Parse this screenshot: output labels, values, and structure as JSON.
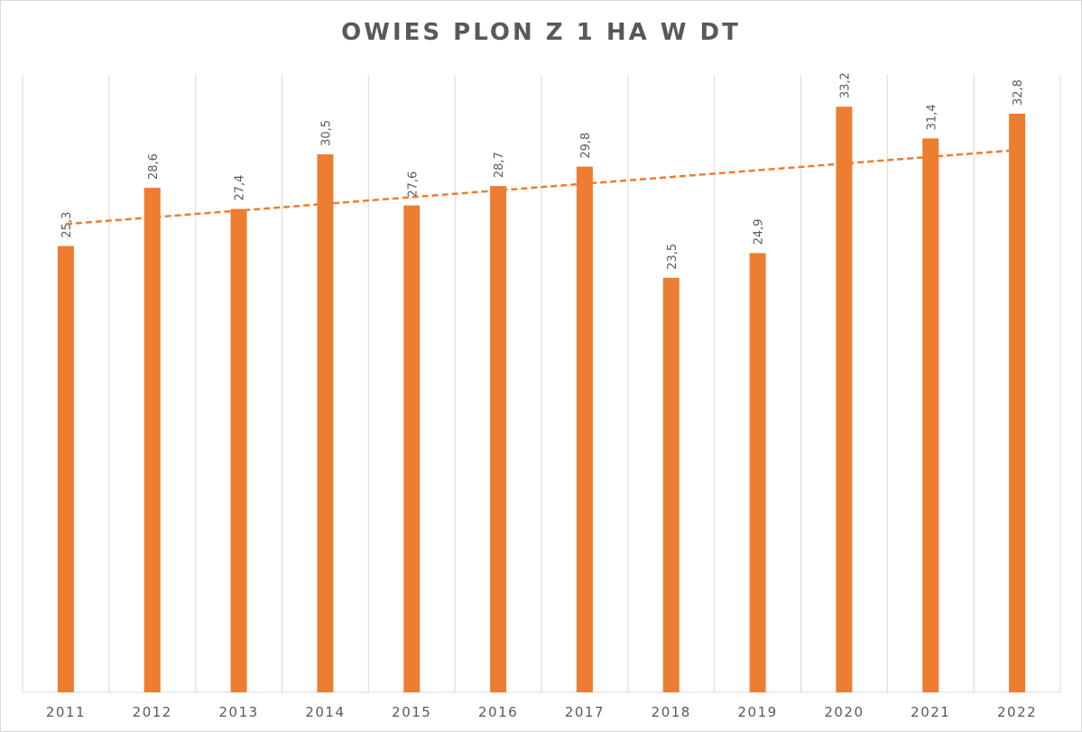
{
  "chart_data": {
    "type": "bar",
    "title": "OWIES PLON Z 1 HA W DT",
    "categories": [
      "2011",
      "2012",
      "2013",
      "2014",
      "2015",
      "2016",
      "2017",
      "2018",
      "2019",
      "2020",
      "2021",
      "2022"
    ],
    "values": [
      25.3,
      28.6,
      27.4,
      30.5,
      27.6,
      28.7,
      29.8,
      23.5,
      24.9,
      33.2,
      31.4,
      32.8
    ],
    "data_labels": [
      "25,3",
      "28,6",
      "27,4",
      "30,5",
      "27,6",
      "28,7",
      "29,8",
      "23,5",
      "24,9",
      "33,2",
      "31,4",
      "32,8"
    ],
    "xlabel": "",
    "ylabel": "",
    "ylim": [
      0,
      35
    ],
    "grid": "vertical",
    "legend": "none",
    "trendline": {
      "type": "linear",
      "style": "dashed"
    },
    "colors": {
      "bar": "#ED7D31",
      "trendline": "#ED7D31",
      "grid": "#d9d9d9",
      "text": "#595959"
    }
  }
}
